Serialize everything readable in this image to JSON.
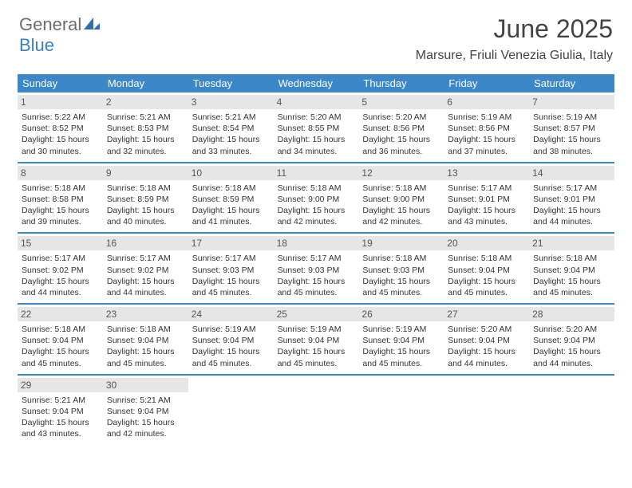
{
  "logo": {
    "part1": "General",
    "part2": "Blue"
  },
  "title": "June 2025",
  "location": "Marsure, Friuli Venezia Giulia, Italy",
  "colors": {
    "header_bg": "#3b87c8",
    "header_text": "#ffffff",
    "daynum_bg": "#e6e6e6",
    "border": "#3b87c8",
    "logo_gray": "#6d6d6d",
    "logo_blue": "#3b7fc4"
  },
  "weekdays": [
    "Sunday",
    "Monday",
    "Tuesday",
    "Wednesday",
    "Thursday",
    "Friday",
    "Saturday"
  ],
  "weeks": [
    [
      {
        "num": "1",
        "sunrise": "Sunrise: 5:22 AM",
        "sunset": "Sunset: 8:52 PM",
        "day1": "Daylight: 15 hours",
        "day2": "and 30 minutes."
      },
      {
        "num": "2",
        "sunrise": "Sunrise: 5:21 AM",
        "sunset": "Sunset: 8:53 PM",
        "day1": "Daylight: 15 hours",
        "day2": "and 32 minutes."
      },
      {
        "num": "3",
        "sunrise": "Sunrise: 5:21 AM",
        "sunset": "Sunset: 8:54 PM",
        "day1": "Daylight: 15 hours",
        "day2": "and 33 minutes."
      },
      {
        "num": "4",
        "sunrise": "Sunrise: 5:20 AM",
        "sunset": "Sunset: 8:55 PM",
        "day1": "Daylight: 15 hours",
        "day2": "and 34 minutes."
      },
      {
        "num": "5",
        "sunrise": "Sunrise: 5:20 AM",
        "sunset": "Sunset: 8:56 PM",
        "day1": "Daylight: 15 hours",
        "day2": "and 36 minutes."
      },
      {
        "num": "6",
        "sunrise": "Sunrise: 5:19 AM",
        "sunset": "Sunset: 8:56 PM",
        "day1": "Daylight: 15 hours",
        "day2": "and 37 minutes."
      },
      {
        "num": "7",
        "sunrise": "Sunrise: 5:19 AM",
        "sunset": "Sunset: 8:57 PM",
        "day1": "Daylight: 15 hours",
        "day2": "and 38 minutes."
      }
    ],
    [
      {
        "num": "8",
        "sunrise": "Sunrise: 5:18 AM",
        "sunset": "Sunset: 8:58 PM",
        "day1": "Daylight: 15 hours",
        "day2": "and 39 minutes."
      },
      {
        "num": "9",
        "sunrise": "Sunrise: 5:18 AM",
        "sunset": "Sunset: 8:59 PM",
        "day1": "Daylight: 15 hours",
        "day2": "and 40 minutes."
      },
      {
        "num": "10",
        "sunrise": "Sunrise: 5:18 AM",
        "sunset": "Sunset: 8:59 PM",
        "day1": "Daylight: 15 hours",
        "day2": "and 41 minutes."
      },
      {
        "num": "11",
        "sunrise": "Sunrise: 5:18 AM",
        "sunset": "Sunset: 9:00 PM",
        "day1": "Daylight: 15 hours",
        "day2": "and 42 minutes."
      },
      {
        "num": "12",
        "sunrise": "Sunrise: 5:18 AM",
        "sunset": "Sunset: 9:00 PM",
        "day1": "Daylight: 15 hours",
        "day2": "and 42 minutes."
      },
      {
        "num": "13",
        "sunrise": "Sunrise: 5:17 AM",
        "sunset": "Sunset: 9:01 PM",
        "day1": "Daylight: 15 hours",
        "day2": "and 43 minutes."
      },
      {
        "num": "14",
        "sunrise": "Sunrise: 5:17 AM",
        "sunset": "Sunset: 9:01 PM",
        "day1": "Daylight: 15 hours",
        "day2": "and 44 minutes."
      }
    ],
    [
      {
        "num": "15",
        "sunrise": "Sunrise: 5:17 AM",
        "sunset": "Sunset: 9:02 PM",
        "day1": "Daylight: 15 hours",
        "day2": "and 44 minutes."
      },
      {
        "num": "16",
        "sunrise": "Sunrise: 5:17 AM",
        "sunset": "Sunset: 9:02 PM",
        "day1": "Daylight: 15 hours",
        "day2": "and 44 minutes."
      },
      {
        "num": "17",
        "sunrise": "Sunrise: 5:17 AM",
        "sunset": "Sunset: 9:03 PM",
        "day1": "Daylight: 15 hours",
        "day2": "and 45 minutes."
      },
      {
        "num": "18",
        "sunrise": "Sunrise: 5:17 AM",
        "sunset": "Sunset: 9:03 PM",
        "day1": "Daylight: 15 hours",
        "day2": "and 45 minutes."
      },
      {
        "num": "19",
        "sunrise": "Sunrise: 5:18 AM",
        "sunset": "Sunset: 9:03 PM",
        "day1": "Daylight: 15 hours",
        "day2": "and 45 minutes."
      },
      {
        "num": "20",
        "sunrise": "Sunrise: 5:18 AM",
        "sunset": "Sunset: 9:04 PM",
        "day1": "Daylight: 15 hours",
        "day2": "and 45 minutes."
      },
      {
        "num": "21",
        "sunrise": "Sunrise: 5:18 AM",
        "sunset": "Sunset: 9:04 PM",
        "day1": "Daylight: 15 hours",
        "day2": "and 45 minutes."
      }
    ],
    [
      {
        "num": "22",
        "sunrise": "Sunrise: 5:18 AM",
        "sunset": "Sunset: 9:04 PM",
        "day1": "Daylight: 15 hours",
        "day2": "and 45 minutes."
      },
      {
        "num": "23",
        "sunrise": "Sunrise: 5:18 AM",
        "sunset": "Sunset: 9:04 PM",
        "day1": "Daylight: 15 hours",
        "day2": "and 45 minutes."
      },
      {
        "num": "24",
        "sunrise": "Sunrise: 5:19 AM",
        "sunset": "Sunset: 9:04 PM",
        "day1": "Daylight: 15 hours",
        "day2": "and 45 minutes."
      },
      {
        "num": "25",
        "sunrise": "Sunrise: 5:19 AM",
        "sunset": "Sunset: 9:04 PM",
        "day1": "Daylight: 15 hours",
        "day2": "and 45 minutes."
      },
      {
        "num": "26",
        "sunrise": "Sunrise: 5:19 AM",
        "sunset": "Sunset: 9:04 PM",
        "day1": "Daylight: 15 hours",
        "day2": "and 45 minutes."
      },
      {
        "num": "27",
        "sunrise": "Sunrise: 5:20 AM",
        "sunset": "Sunset: 9:04 PM",
        "day1": "Daylight: 15 hours",
        "day2": "and 44 minutes."
      },
      {
        "num": "28",
        "sunrise": "Sunrise: 5:20 AM",
        "sunset": "Sunset: 9:04 PM",
        "day1": "Daylight: 15 hours",
        "day2": "and 44 minutes."
      }
    ],
    [
      {
        "num": "29",
        "sunrise": "Sunrise: 5:21 AM",
        "sunset": "Sunset: 9:04 PM",
        "day1": "Daylight: 15 hours",
        "day2": "and 43 minutes."
      },
      {
        "num": "30",
        "sunrise": "Sunrise: 5:21 AM",
        "sunset": "Sunset: 9:04 PM",
        "day1": "Daylight: 15 hours",
        "day2": "and 42 minutes."
      },
      null,
      null,
      null,
      null,
      null
    ]
  ]
}
